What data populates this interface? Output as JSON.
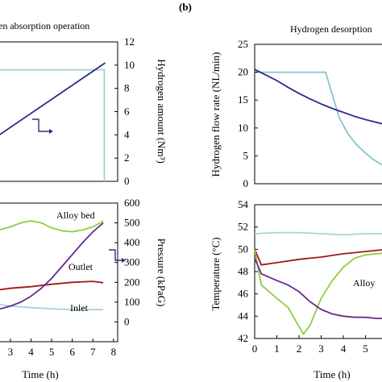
{
  "figure": {
    "panel_letter": "(b)",
    "left_title": "en absorption operation",
    "right_title": "Hydrogen desorption"
  },
  "chart_data": [
    {
      "id": "top-left",
      "type": "line",
      "ylabel_right": "Hydrogen amount (Nm³)",
      "xlim": [
        2.3,
        8.2
      ],
      "ylim": [
        0,
        12
      ],
      "y_ticks": [
        0,
        2,
        4,
        6,
        8,
        10,
        12
      ],
      "grid": false,
      "series": [
        {
          "color": "#9fcfd8",
          "x": [
            2.3,
            7.55,
            7.55
          ],
          "y": [
            9.6,
            9.6,
            0
          ]
        },
        {
          "color": "#2c2c8a",
          "x": [
            2.3,
            7.6
          ],
          "y": [
            3.8,
            10.2
          ]
        }
      ]
    },
    {
      "id": "bottom-left",
      "type": "line",
      "xlabel": "Time (h)",
      "ylabel_right": "Pressure (kPaG)",
      "xlim": [
        2.3,
        8.2
      ],
      "ylim": [
        -100,
        600
      ],
      "x_ticks": [
        3,
        4,
        5,
        6,
        7,
        8
      ],
      "y_ticks": [
        0,
        100,
        200,
        300,
        400,
        500,
        600
      ],
      "grid": false,
      "annotations": [
        "Alloy bed",
        "Outlet",
        "Inlet"
      ],
      "series": [
        {
          "name": "Alloy bed",
          "color": "#8fce3c",
          "x": [
            2.3,
            3,
            3.5,
            4,
            4.5,
            5,
            5.5,
            6,
            6.5,
            7,
            7.5
          ],
          "y": [
            460,
            480,
            500,
            510,
            500,
            475,
            460,
            455,
            465,
            480,
            510
          ]
        },
        {
          "name": "Outlet",
          "color": "#a01818",
          "x": [
            2.3,
            3,
            4,
            5,
            6,
            7,
            7.5
          ],
          "y": [
            160,
            170,
            178,
            190,
            200,
            205,
            198
          ]
        },
        {
          "name": "Inlet",
          "color": "#a6d4e0",
          "x": [
            2.3,
            3,
            4,
            5,
            6,
            7,
            7.5
          ],
          "y": [
            90,
            80,
            72,
            66,
            62,
            62,
            62
          ]
        },
        {
          "color": "#6a2a8f",
          "x": [
            2.3,
            3,
            3.5,
            4,
            4.5,
            5,
            5.5,
            6,
            6.5,
            7,
            7.5
          ],
          "y": [
            60,
            80,
            100,
            130,
            170,
            220,
            280,
            340,
            400,
            455,
            500
          ]
        }
      ]
    },
    {
      "id": "top-right",
      "type": "line",
      "ylabel": "Hydrogen flow rate (NL/min)",
      "xlim": [
        0,
        6
      ],
      "ylim": [
        0,
        25
      ],
      "y_ticks": [
        0,
        5,
        10,
        15,
        20,
        25
      ],
      "grid": false,
      "series": [
        {
          "color": "#85c4cf",
          "x": [
            0,
            1,
            2,
            3.2,
            3.5,
            3.8,
            4.2,
            4.6,
            5,
            5.3,
            5.7,
            6
          ],
          "y": [
            20,
            20,
            20,
            20,
            16,
            12,
            9,
            7,
            5.5,
            4.5,
            3.5,
            3
          ]
        },
        {
          "color": "#2a2a8a",
          "x": [
            0,
            0.5,
            1,
            1.5,
            2,
            2.5,
            3,
            3.5,
            4,
            4.5,
            5,
            5.5,
            6
          ],
          "y": [
            20.5,
            19.5,
            18.5,
            17.3,
            16.2,
            15.2,
            14.3,
            13.5,
            12.8,
            12.1,
            11.5,
            11,
            10.5
          ]
        }
      ]
    },
    {
      "id": "bottom-right",
      "type": "line",
      "xlabel": "Time (h)",
      "ylabel": "Temperature (°C)",
      "xlim": [
        0,
        6
      ],
      "ylim": [
        42,
        54
      ],
      "x_ticks": [
        0,
        1,
        2,
        3,
        4,
        5
      ],
      "y_ticks": [
        42,
        44,
        46,
        48,
        50,
        52,
        54
      ],
      "grid": false,
      "annotations": [
        "Alloy"
      ],
      "series": [
        {
          "color": "#a6d4e0",
          "x": [
            0,
            1,
            2,
            3,
            4,
            5,
            6
          ],
          "y": [
            51.4,
            51.5,
            51.5,
            51.4,
            51.3,
            51.4,
            51.4
          ]
        },
        {
          "color": "#a01818",
          "x": [
            0,
            0.3,
            1,
            2,
            3,
            4,
            5,
            6
          ],
          "y": [
            50,
            48.6,
            48.8,
            49.1,
            49.3,
            49.6,
            49.8,
            50
          ]
        },
        {
          "color": "#8fce3c",
          "x": [
            0,
            0.3,
            1,
            1.5,
            1.9,
            2.2,
            2.5,
            3,
            3.5,
            4,
            4.5,
            5,
            5.5,
            6
          ],
          "y": [
            50,
            46.8,
            45.6,
            44.8,
            43.4,
            42.4,
            43.2,
            45.6,
            47.2,
            48.4,
            49.2,
            49.5,
            49.6,
            49.7
          ]
        },
        {
          "color": "#6a2a8f",
          "x": [
            0,
            0.3,
            1,
            1.5,
            2,
            2.5,
            3,
            3.5,
            4,
            4.5,
            5,
            5.5,
            6
          ],
          "y": [
            49.2,
            47.8,
            47.2,
            46.8,
            46.2,
            45.3,
            44.6,
            44.2,
            44,
            43.9,
            43.9,
            43.8,
            43.8
          ]
        }
      ]
    }
  ]
}
